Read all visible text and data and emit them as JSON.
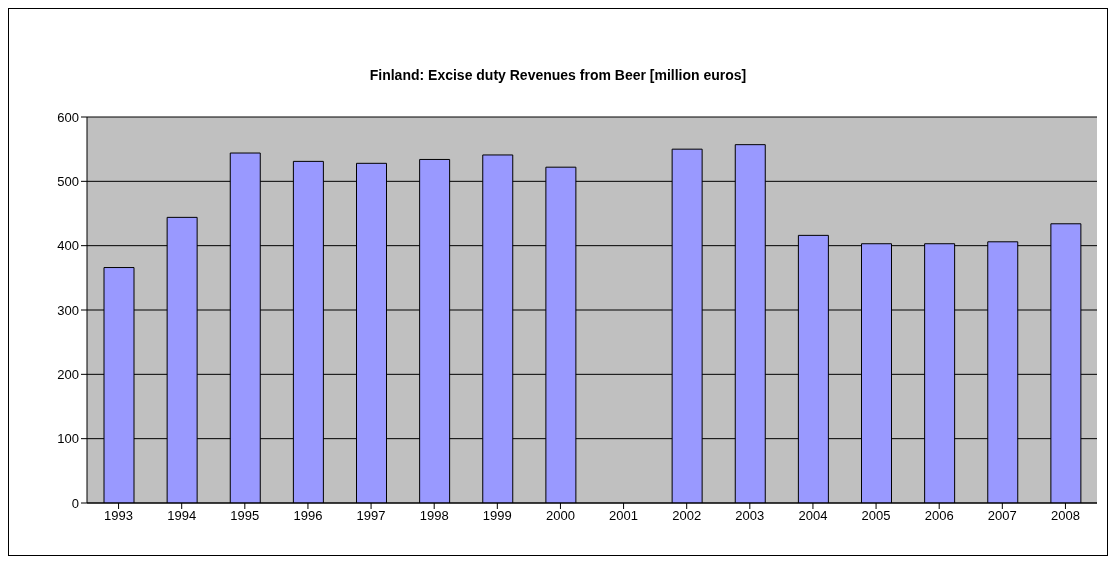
{
  "chart_data": {
    "type": "bar",
    "title": "Finland: Excise duty Revenues from Beer [million euros]",
    "categories": [
      "1993",
      "1994",
      "1995",
      "1996",
      "1997",
      "1998",
      "1999",
      "2000",
      "2001",
      "2002",
      "2003",
      "2004",
      "2005",
      "2006",
      "2007",
      "2008"
    ],
    "values": [
      366,
      444,
      544,
      531,
      528,
      534,
      541,
      522,
      null,
      550,
      557,
      416,
      403,
      403,
      406,
      434
    ],
    "color": "#9999ff",
    "ylim": [
      0,
      600
    ],
    "yticks": [
      0,
      100,
      200,
      300,
      400,
      500,
      600
    ],
    "grid": "y"
  }
}
